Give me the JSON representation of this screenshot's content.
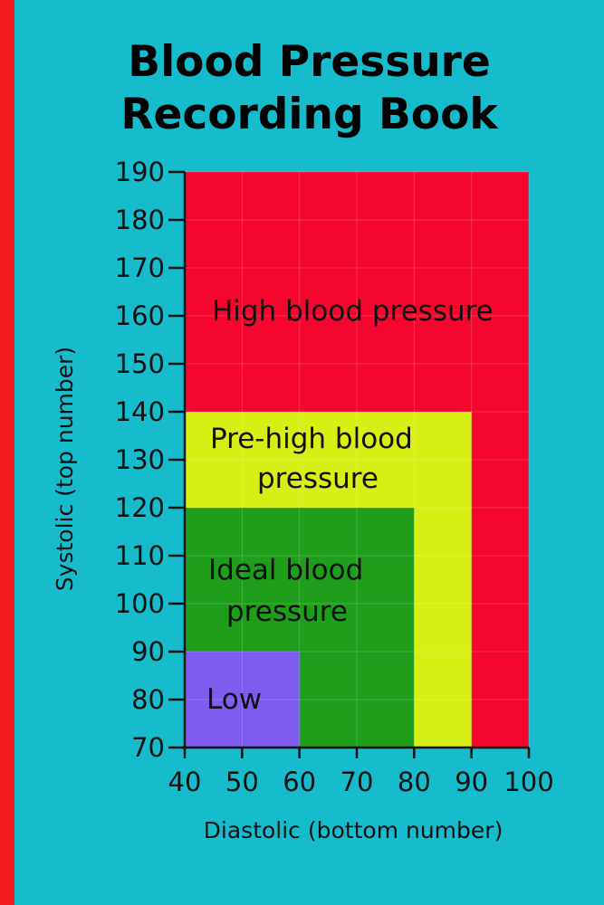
{
  "cover": {
    "title_line1": "Blood Pressure",
    "title_line2": "Recording Book",
    "background_color": "#16bccb",
    "spine_color": "#f41c1c"
  },
  "chart_data": {
    "type": "area",
    "xlabel": "Diastolic (bottom number)",
    "ylabel": "Systolic (top number)",
    "xlim": [
      40,
      100
    ],
    "ylim": [
      70,
      190
    ],
    "x_ticks": [
      40,
      50,
      60,
      70,
      80,
      90,
      100
    ],
    "y_ticks": [
      70,
      80,
      90,
      100,
      110,
      120,
      130,
      140,
      150,
      160,
      170,
      180,
      190
    ],
    "grid": true,
    "zones": [
      {
        "label": [
          "High blood pressure"
        ],
        "x_max": 100,
        "y_max": 190,
        "color": "#f5062e"
      },
      {
        "label": [
          "Pre-high blood",
          "pressure"
        ],
        "x_max": 90,
        "y_max": 140,
        "color": "#d7ef14"
      },
      {
        "label": [
          "Ideal blood",
          "pressure"
        ],
        "x_max": 80,
        "y_max": 120,
        "color": "#1f9e1c"
      },
      {
        "label": [
          "Low"
        ],
        "x_max": 60,
        "y_max": 90,
        "color": "#7e5cf0"
      }
    ]
  }
}
